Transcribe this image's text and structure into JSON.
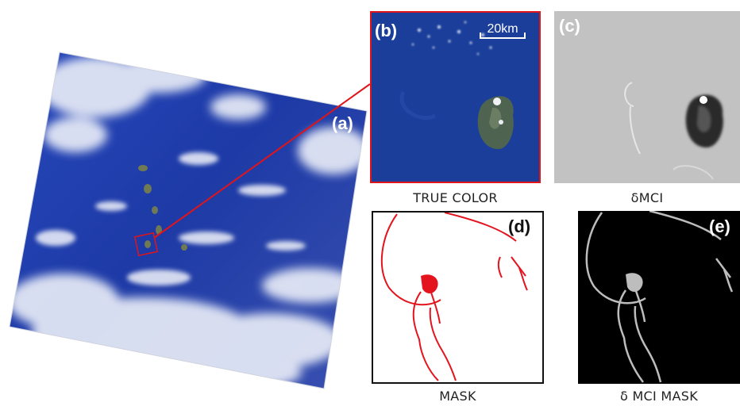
{
  "panels": {
    "a": {
      "label": "(a)"
    },
    "b": {
      "label": "(b)",
      "scale_bar": "20km",
      "caption": "TRUE COLOR"
    },
    "c": {
      "label": "(c)",
      "caption": "δMCI"
    },
    "d": {
      "label": "(d)",
      "caption": "MASK"
    },
    "e": {
      "label": "(e)",
      "caption": "δ MCI MASK"
    }
  },
  "colors": {
    "ocean": "#1f3ea8",
    "highlight": "#e0141b",
    "mask_red": "#e4141e",
    "mask_grey": "#bdbdbd"
  }
}
